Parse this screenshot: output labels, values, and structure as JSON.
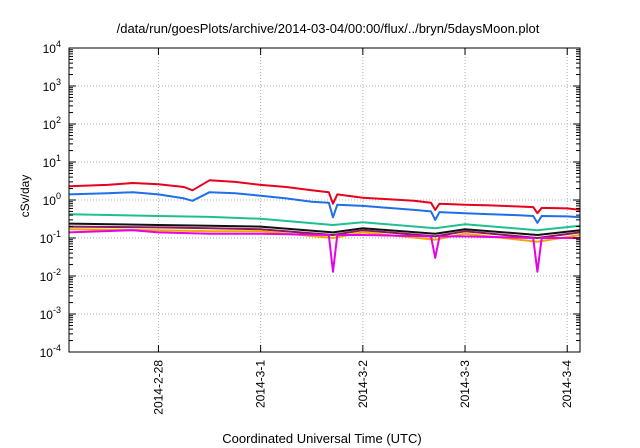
{
  "chart_data": {
    "type": "line",
    "title": "/data/run/goesPlots/archive/2014-03-04/00:00/flux/../bryn/5daysMoon.plot",
    "xlabel": "Coordinated Universal Time (UTC)",
    "ylabel": "cSv/day",
    "y_scale": "log",
    "ylim": [
      0.0001,
      10000
    ],
    "xlim": [
      "2014-02-27 03:00",
      "2014-03-04 03:00"
    ],
    "x_ticks": [
      "2014-2-28",
      "2014-3-1",
      "2014-3-2",
      "2014-3-3",
      "2014-3-4"
    ],
    "y_ticks": [
      {
        "base": "10",
        "exp": "-4"
      },
      {
        "base": "10",
        "exp": "-3"
      },
      {
        "base": "10",
        "exp": "-2"
      },
      {
        "base": "10",
        "exp": "-1"
      },
      {
        "base": "10",
        "exp": "0"
      },
      {
        "base": "10",
        "exp": "1"
      },
      {
        "base": "10",
        "exp": "2"
      },
      {
        "base": "10",
        "exp": "3"
      },
      {
        "base": "10",
        "exp": "4"
      }
    ],
    "grid": true,
    "series": [
      {
        "color": "#e8001c",
        "x": [
          "2014-02-27 03:00",
          "2014-02-27 12:00",
          "2014-02-27 18:00",
          "2014-02-28 00:00",
          "2014-02-28 06:00",
          "2014-02-28 08:00",
          "2014-02-28 12:00",
          "2014-02-28 18:00",
          "2014-03-01 00:00",
          "2014-03-01 06:00",
          "2014-03-01 12:00",
          "2014-03-01 16:00",
          "2014-03-01 17:00",
          "2014-03-01 18:00",
          "2014-03-02 00:00",
          "2014-03-02 06:00",
          "2014-03-02 12:00",
          "2014-03-02 16:00",
          "2014-03-02 17:00",
          "2014-03-02 18:00",
          "2014-03-03 00:00",
          "2014-03-03 06:00",
          "2014-03-03 12:00",
          "2014-03-03 16:00",
          "2014-03-03 17:00",
          "2014-03-03 18:00",
          "2014-03-04 00:00",
          "2014-03-04 03:00"
        ],
        "values": [
          2.3,
          2.5,
          2.8,
          2.6,
          2.2,
          1.8,
          3.3,
          3.0,
          2.5,
          2.2,
          1.8,
          1.6,
          0.8,
          1.4,
          1.15,
          1.05,
          0.95,
          0.85,
          0.55,
          0.8,
          0.75,
          0.72,
          0.68,
          0.65,
          0.45,
          0.62,
          0.6,
          0.55
        ]
      },
      {
        "color": "#1f6fe8",
        "x": [
          "2014-02-27 03:00",
          "2014-02-27 12:00",
          "2014-02-27 18:00",
          "2014-02-28 00:00",
          "2014-02-28 06:00",
          "2014-02-28 08:00",
          "2014-02-28 12:00",
          "2014-02-28 18:00",
          "2014-03-01 00:00",
          "2014-03-01 06:00",
          "2014-03-01 12:00",
          "2014-03-01 16:00",
          "2014-03-01 17:00",
          "2014-03-01 18:00",
          "2014-03-02 00:00",
          "2014-03-02 06:00",
          "2014-03-02 12:00",
          "2014-03-02 16:00",
          "2014-03-02 17:00",
          "2014-03-02 18:00",
          "2014-03-03 00:00",
          "2014-03-03 06:00",
          "2014-03-03 12:00",
          "2014-03-03 16:00",
          "2014-03-03 17:00",
          "2014-03-03 18:00",
          "2014-03-04 00:00",
          "2014-03-04 03:00"
        ],
        "values": [
          1.4,
          1.5,
          1.6,
          1.4,
          1.1,
          0.95,
          1.6,
          1.5,
          1.3,
          1.1,
          0.9,
          0.85,
          0.35,
          0.75,
          0.7,
          0.62,
          0.55,
          0.5,
          0.3,
          0.48,
          0.45,
          0.42,
          0.4,
          0.38,
          0.25,
          0.38,
          0.37,
          0.35
        ]
      },
      {
        "color": "#1fbf8f",
        "x": [
          "2014-02-27 03:00",
          "2014-02-28 00:00",
          "2014-02-28 12:00",
          "2014-03-01 00:00",
          "2014-03-01 17:00",
          "2014-03-02 00:00",
          "2014-03-02 17:00",
          "2014-03-03 00:00",
          "2014-03-03 17:00",
          "2014-03-04 03:00"
        ],
        "values": [
          0.42,
          0.38,
          0.36,
          0.32,
          0.22,
          0.26,
          0.18,
          0.23,
          0.16,
          0.21
        ]
      },
      {
        "color": "#111111",
        "x": [
          "2014-02-27 03:00",
          "2014-02-28 00:00",
          "2014-02-28 12:00",
          "2014-03-01 00:00",
          "2014-03-01 17:00",
          "2014-03-02 00:00",
          "2014-03-02 17:00",
          "2014-03-03 00:00",
          "2014-03-03 17:00",
          "2014-03-04 03:00"
        ],
        "values": [
          0.24,
          0.22,
          0.21,
          0.2,
          0.14,
          0.18,
          0.13,
          0.17,
          0.12,
          0.16
        ]
      },
      {
        "color": "#8a1a5a",
        "x": [
          "2014-02-27 03:00",
          "2014-02-28 00:00",
          "2014-02-28 12:00",
          "2014-03-01 00:00",
          "2014-03-01 17:00",
          "2014-03-02 00:00",
          "2014-03-02 17:00",
          "2014-03-03 00:00",
          "2014-03-03 17:00",
          "2014-03-04 03:00"
        ],
        "values": [
          0.2,
          0.19,
          0.18,
          0.17,
          0.12,
          0.16,
          0.11,
          0.15,
          0.1,
          0.14
        ]
      },
      {
        "color": "#f0a800",
        "x": [
          "2014-02-27 03:00",
          "2014-02-28 00:00",
          "2014-02-28 12:00",
          "2014-03-01 00:00",
          "2014-03-01 17:00",
          "2014-03-02 00:00",
          "2014-03-02 17:00",
          "2014-03-03 00:00",
          "2014-03-03 17:00",
          "2014-03-04 03:00"
        ],
        "values": [
          0.17,
          0.16,
          0.15,
          0.15,
          0.1,
          0.14,
          0.09,
          0.13,
          0.08,
          0.12
        ]
      },
      {
        "color": "#e800e8",
        "x": [
          "2014-02-27 03:00",
          "2014-02-27 18:00",
          "2014-02-28 00:00",
          "2014-02-28 12:00",
          "2014-03-01 00:00",
          "2014-03-01 16:00",
          "2014-03-01 17:00",
          "2014-03-01 18:00",
          "2014-03-02 00:00",
          "2014-03-02 16:00",
          "2014-03-02 17:00",
          "2014-03-02 18:00",
          "2014-03-03 00:00",
          "2014-03-03 16:00",
          "2014-03-03 17:00",
          "2014-03-03 18:00",
          "2014-03-04 03:00"
        ],
        "values": [
          0.14,
          0.16,
          0.14,
          0.13,
          0.13,
          0.12,
          0.013,
          0.12,
          0.12,
          0.11,
          0.03,
          0.11,
          0.11,
          0.1,
          0.013,
          0.1,
          0.1
        ]
      }
    ]
  }
}
